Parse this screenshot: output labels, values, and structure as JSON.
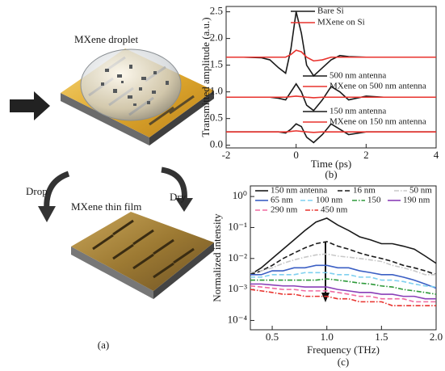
{
  "figure": {
    "panel_a": {
      "label": "(a)",
      "droplet_label": "MXene droplet",
      "drop_label": "Drop",
      "dry_label": "Dry",
      "film_label": "MXene thin film"
    }
  },
  "chart_data": [
    {
      "type": "line",
      "panel_label": "(b)",
      "x_label": "Time (ps)",
      "y_label": "Transmitted amplitude (a.u.)",
      "xlim": [
        -2,
        4
      ],
      "xticks": [
        -2,
        0,
        2,
        4
      ],
      "ylim": [
        -0.05,
        2.6
      ],
      "yticks": [
        {
          "value": 0,
          "label": "0.0"
        },
        0.5,
        {
          "value": 1,
          "label": "1.0"
        },
        1.5,
        {
          "value": 2,
          "label": "2.0"
        },
        2.5
      ],
      "x": [
        -2,
        -1.5,
        -1,
        -0.75,
        -0.5,
        -0.3,
        -0.15,
        0,
        0.15,
        0.3,
        0.5,
        0.75,
        1,
        1.25,
        1.5,
        2,
        2.5,
        3,
        3.5,
        4
      ],
      "series": [
        {
          "name": "Bare Si",
          "color": "#1a1a1a",
          "values": [
            1.65,
            1.65,
            1.64,
            1.6,
            1.45,
            1.35,
            1.8,
            2.5,
            2.1,
            1.5,
            1.3,
            1.45,
            1.6,
            1.68,
            1.66,
            1.65,
            1.65,
            1.65,
            1.65,
            1.65
          ]
        },
        {
          "name": "MXene on Si",
          "color": "#e8332e",
          "values": [
            1.65,
            1.65,
            1.65,
            1.65,
            1.65,
            1.65,
            1.7,
            1.78,
            1.75,
            1.65,
            1.58,
            1.6,
            1.65,
            1.65,
            1.65,
            1.65,
            1.65,
            1.65,
            1.65,
            1.65
          ]
        },
        {
          "name": "500 nm antenna",
          "color": "#1a1a1a",
          "values": [
            0.9,
            0.9,
            0.9,
            0.9,
            0.88,
            0.85,
            1.0,
            1.15,
            1.0,
            0.75,
            0.65,
            0.85,
            1.1,
            1.0,
            0.85,
            0.92,
            0.9,
            0.9,
            0.9,
            0.9
          ]
        },
        {
          "name": "MXene on 500 nm antenna",
          "color": "#e8332e",
          "values": [
            0.9,
            0.9,
            0.9,
            0.9,
            0.9,
            0.9,
            0.91,
            0.92,
            0.91,
            0.9,
            0.89,
            0.9,
            0.9,
            0.9,
            0.9,
            0.9,
            0.9,
            0.9,
            0.9,
            0.9
          ]
        },
        {
          "name": "150 nm antenna",
          "color": "#1a1a1a",
          "values": [
            0.25,
            0.25,
            0.25,
            0.25,
            0.25,
            0.23,
            0.3,
            0.4,
            0.35,
            0.15,
            0.05,
            0.2,
            0.4,
            0.3,
            0.2,
            0.25,
            0.25,
            0.25,
            0.25,
            0.25
          ]
        },
        {
          "name": "MXene on 150 nm antenna",
          "color": "#e8332e",
          "values": [
            0.25,
            0.25,
            0.25,
            0.25,
            0.25,
            0.25,
            0.26,
            0.27,
            0.26,
            0.25,
            0.24,
            0.25,
            0.25,
            0.25,
            0.25,
            0.25,
            0.25,
            0.25,
            0.25,
            0.25
          ]
        }
      ]
    },
    {
      "type": "line",
      "panel_label": "(c)",
      "x_label": "Frequency (THz)",
      "y_label": "Normalized intensity",
      "log_y": true,
      "xlim": [
        0.3,
        2.0
      ],
      "xticks": [
        0.5,
        {
          "value": 1,
          "label": "1.0"
        },
        1.5,
        {
          "value": 2,
          "label": "2.0"
        }
      ],
      "ylim": [
        5e-05,
        2.2
      ],
      "yticks": [
        {
          "value": 1,
          "label": "10⁰"
        },
        {
          "value": 0.1,
          "label": "10⁻¹"
        },
        {
          "value": 0.01,
          "label": "10⁻²"
        },
        {
          "value": 0.001,
          "label": "10⁻³"
        },
        {
          "value": 0.0001,
          "label": "10⁻⁴"
        }
      ],
      "x": [
        0.3,
        0.4,
        0.5,
        0.6,
        0.7,
        0.8,
        0.9,
        1.0,
        1.1,
        1.2,
        1.3,
        1.4,
        1.5,
        1.6,
        1.7,
        1.8,
        1.9,
        2.0
      ],
      "series": [
        {
          "name": "150 nm antenna",
          "color": "#1a1a1a",
          "dash": "solid",
          "values": [
            0.003,
            0.005,
            0.01,
            0.02,
            0.04,
            0.08,
            0.15,
            0.2,
            0.12,
            0.08,
            0.05,
            0.04,
            0.03,
            0.03,
            0.025,
            0.02,
            0.012,
            0.007
          ]
        },
        {
          "name": "16 nm",
          "color": "#1a1a1a",
          "dash": "dashed",
          "values": [
            0.003,
            0.004,
            0.006,
            0.01,
            0.015,
            0.022,
            0.03,
            0.035,
            0.025,
            0.02,
            0.015,
            0.012,
            0.01,
            0.008,
            0.006,
            0.005,
            0.004,
            0.003
          ]
        },
        {
          "name": "50 nm",
          "color": "#c8c8c8",
          "dash": "dashdot",
          "values": [
            0.0035,
            0.004,
            0.005,
            0.007,
            0.009,
            0.011,
            0.013,
            0.014,
            0.012,
            0.011,
            0.01,
            0.009,
            0.008,
            0.006,
            0.005,
            0.004,
            0.003,
            0.003
          ]
        },
        {
          "name": "65 nm",
          "color": "#3b5fc4",
          "dash": "solid",
          "values": [
            0.003,
            0.003,
            0.004,
            0.004,
            0.005,
            0.005,
            0.006,
            0.006,
            0.005,
            0.005,
            0.004,
            0.0035,
            0.003,
            0.003,
            0.0025,
            0.002,
            0.0015,
            0.0011
          ]
        },
        {
          "name": "100 nm",
          "color": "#7fd0f0",
          "dash": "dashed",
          "values": [
            0.0025,
            0.0025,
            0.003,
            0.003,
            0.003,
            0.0035,
            0.0035,
            0.0035,
            0.003,
            0.003,
            0.0025,
            0.0025,
            0.002,
            0.002,
            0.0018,
            0.0015,
            0.0013,
            0.0012
          ]
        },
        {
          "name": "150",
          "color": "#2e9a3a",
          "dash": "dashdot",
          "values": [
            0.002,
            0.002,
            0.002,
            0.002,
            0.002,
            0.002,
            0.002,
            0.0022,
            0.002,
            0.0018,
            0.0016,
            0.0015,
            0.0013,
            0.0012,
            0.001,
            0.0009,
            0.0008,
            0.0007
          ]
        },
        {
          "name": "190 nm",
          "color": "#8a3fb8",
          "dash": "solid",
          "values": [
            0.0015,
            0.0015,
            0.0014,
            0.0013,
            0.0013,
            0.0012,
            0.0012,
            0.0012,
            0.001,
            0.0009,
            0.0008,
            0.0008,
            0.0007,
            0.0007,
            0.0006,
            0.0006,
            0.0005,
            0.0005
          ]
        },
        {
          "name": "290 nm",
          "color": "#f06aa0",
          "dash": "dashed",
          "values": [
            0.0013,
            0.0012,
            0.0011,
            0.001,
            0.001,
            0.0009,
            0.0009,
            0.0009,
            0.0008,
            0.0007,
            0.0006,
            0.0006,
            0.0005,
            0.0005,
            0.0005,
            0.0004,
            0.0004,
            0.0004
          ]
        },
        {
          "name": "450 nm",
          "color": "#e8332e",
          "dash": "dashdot",
          "values": [
            0.001,
            0.0009,
            0.0008,
            0.0007,
            0.0007,
            0.0006,
            0.0006,
            0.0006,
            0.0005,
            0.0005,
            0.0004,
            0.0004,
            0.0004,
            0.0003,
            0.0003,
            0.0003,
            0.0003,
            0.0003
          ]
        }
      ]
    }
  ]
}
